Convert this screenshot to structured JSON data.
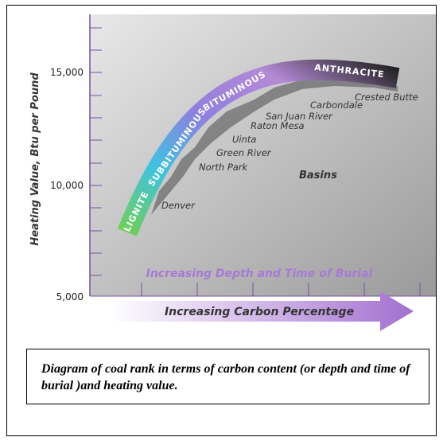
{
  "y_axis": {
    "title": "Heating Value, Btu per Pound",
    "ticks": [
      "15,000",
      "10,000",
      "5,000"
    ]
  },
  "ranks": [
    "LIGNITE",
    "SUBBITUMINOUS",
    "BITUMINOUS",
    "ANTHRACITE"
  ],
  "basins": {
    "title": "Basins",
    "names": [
      "Denver",
      "North Park",
      "Green River",
      "Uinta",
      "Raton Mesa",
      "San Juan River",
      "Carbondale",
      "Crested Butte"
    ]
  },
  "depth_label": "Increasing Depth and Time of Burial",
  "carbon_label": "Increasing Carbon Percentage",
  "caption": "Diagram of coal rank in terms of carbon content (or depth and time of burial )and heating value."
}
